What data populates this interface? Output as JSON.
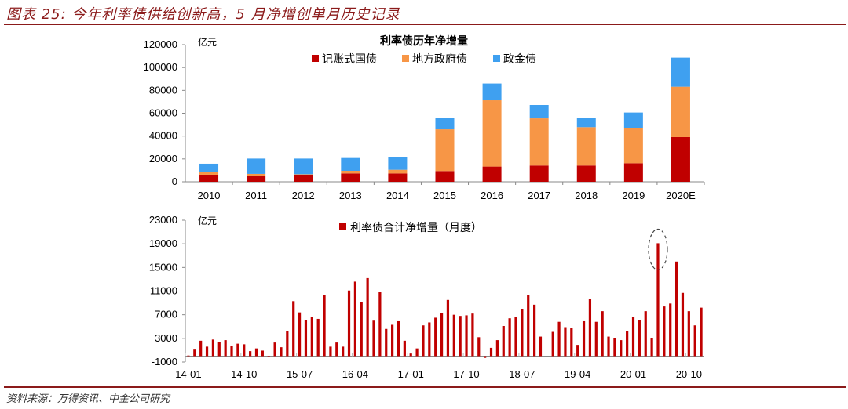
{
  "title": "图表 25: 今年利率债供给创新高，5 月净增创单月历史记录",
  "source": "资料来源：万得资讯、中金公司研究",
  "chart_data": [
    {
      "type": "bar",
      "stacked": true,
      "title": "利率债历年净增量",
      "unit": "亿元",
      "categories": [
        "2010",
        "2011",
        "2012",
        "2013",
        "2014",
        "2015",
        "2016",
        "2017",
        "2018",
        "2019",
        "2020E"
      ],
      "ylim": [
        0,
        120000
      ],
      "yticks": [
        0,
        20000,
        40000,
        60000,
        80000,
        100000,
        120000
      ],
      "legend": "top",
      "series": [
        {
          "name": "记账式国债",
          "color": "#c00000",
          "values": [
            6200,
            5000,
            6200,
            7300,
            7300,
            9400,
            13300,
            14200,
            14200,
            16200,
            39100
          ]
        },
        {
          "name": "地方政府债",
          "color": "#f79646",
          "values": [
            2300,
            1900,
            400,
            2300,
            3200,
            36500,
            58000,
            41300,
            33600,
            30900,
            44100
          ]
        },
        {
          "name": "政金债",
          "color": "#3fa0f0",
          "values": [
            7300,
            13400,
            13700,
            11200,
            11000,
            10100,
            14700,
            11700,
            8400,
            13500,
            25400
          ]
        }
      ]
    },
    {
      "type": "bar",
      "unit": "亿元",
      "ylim": [
        -1000,
        23000
      ],
      "yticks": [
        -1000,
        3000,
        7000,
        11000,
        15000,
        19000,
        23000
      ],
      "legend": "top",
      "xticklabels": [
        "14-01",
        "14-10",
        "15-07",
        "16-04",
        "17-01",
        "17-10",
        "18-07",
        "19-04",
        "20-01",
        "20-10"
      ],
      "start_month": "2014-01",
      "highlight": "2020-05",
      "series": [
        {
          "name": "利率债合计净增量（月度）",
          "color": "#c00000",
          "values": [
            100,
            1100,
            2600,
            1600,
            2800,
            2400,
            2700,
            1700,
            2100,
            2000,
            840,
            1300,
            930,
            -200,
            2300,
            1500,
            4200,
            9300,
            7400,
            6100,
            6600,
            6300,
            10400,
            1600,
            2300,
            1600,
            11100,
            12600,
            9200,
            13200,
            6000,
            10800,
            4600,
            5300,
            5900,
            2600,
            440,
            1300,
            5200,
            5700,
            6500,
            7300,
            9500,
            7000,
            6800,
            6900,
            7200,
            3200,
            -300,
            1400,
            2700,
            5100,
            6400,
            6600,
            8000,
            10300,
            8700,
            3300,
            0,
            4100,
            5800,
            4900,
            4800,
            1900,
            5900,
            9700,
            5800,
            7600,
            3300,
            3100,
            2700,
            4300,
            6600,
            6100,
            7600,
            3000,
            19100,
            8400,
            8900,
            16000,
            10700,
            7600,
            5200,
            8200
          ]
        }
      ]
    }
  ]
}
